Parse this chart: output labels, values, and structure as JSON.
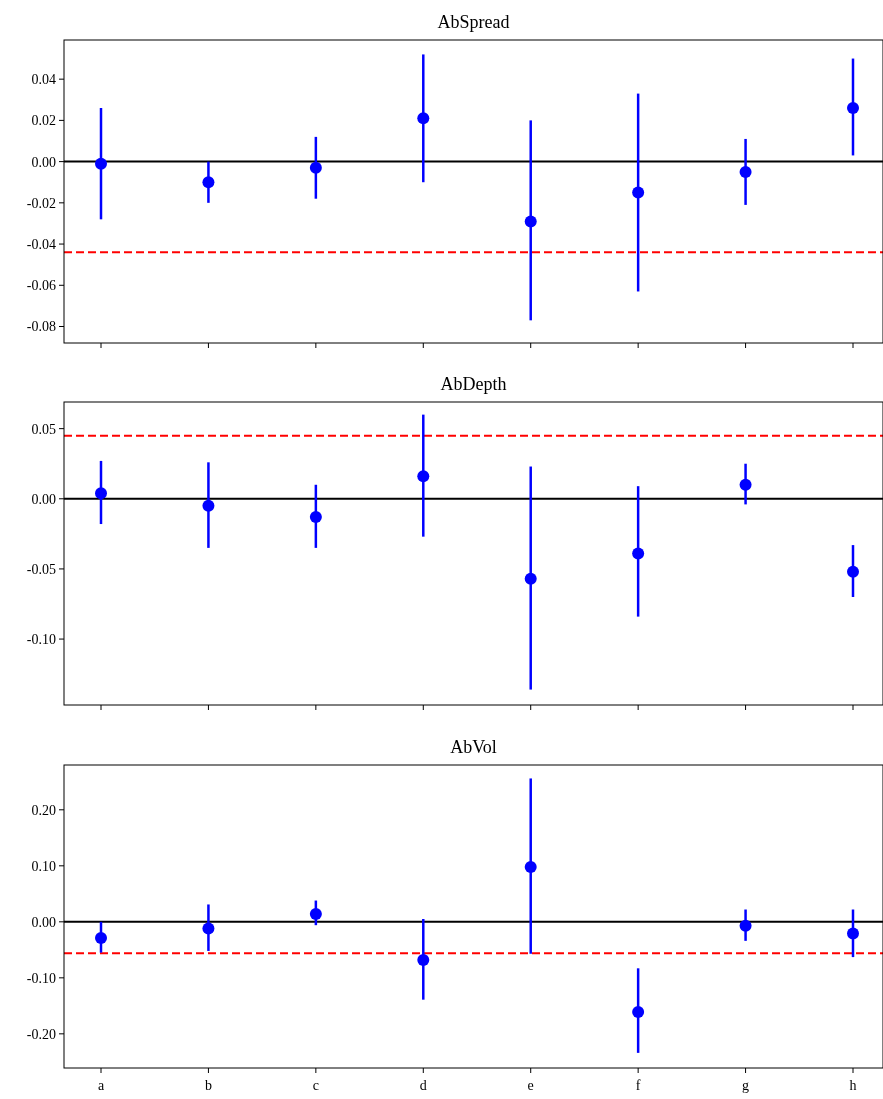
{
  "chart_data": [
    {
      "type": "scatter",
      "title": "AbSpread",
      "categories": [
        null,
        null,
        null,
        null,
        null,
        null,
        null,
        null
      ],
      "tick_labels": "y",
      "marker": "circle",
      "ylim": [
        -0.088,
        0.059
      ],
      "yticks": [
        {
          "value": -0.08,
          "label": "-0.08"
        },
        {
          "value": -0.06,
          "label": "-0.06"
        },
        {
          "value": -0.04,
          "label": "-0.04"
        },
        {
          "value": -0.02,
          "label": "-0.02"
        },
        {
          "value": 0,
          "label": "0.00"
        },
        {
          "value": 0.02,
          "label": "0.02"
        },
        {
          "value": 0.04,
          "label": "0.04"
        }
      ],
      "series": [
        {
          "color": "#0000ff",
          "values": [
            -0.001,
            -0.01,
            -0.003,
            0.021,
            -0.029,
            -0.015,
            -0.005,
            0.026
          ],
          "errors": [
            [
              -0.028,
              0.026
            ],
            [
              -0.02,
              0.0
            ],
            [
              -0.018,
              0.012
            ],
            [
              -0.01,
              0.052
            ],
            [
              -0.077,
              0.02
            ],
            [
              -0.063,
              0.033
            ],
            [
              -0.021,
              0.011
            ],
            [
              0.003,
              0.05
            ]
          ]
        }
      ],
      "ref_lines": [
        {
          "axis": "y",
          "value": 0,
          "color": "#000000",
          "line_style": "solid"
        },
        {
          "axis": "y",
          "value": -0.044,
          "color": "#ff0000",
          "line_style": "dashed"
        }
      ]
    },
    {
      "type": "scatter",
      "title": "AbDepth",
      "categories": [
        null,
        null,
        null,
        null,
        null,
        null,
        null,
        null
      ],
      "tick_labels": "y",
      "marker": "circle",
      "ylim": [
        -0.147,
        0.069
      ],
      "yticks": [
        {
          "value": -0.1,
          "label": "-0.10"
        },
        {
          "value": -0.05,
          "label": "-0.05"
        },
        {
          "value": 0,
          "label": "0.00"
        },
        {
          "value": 0.05,
          "label": "0.05"
        }
      ],
      "series": [
        {
          "color": "#0000ff",
          "values": [
            0.004,
            -0.005,
            -0.013,
            0.016,
            -0.057,
            -0.039,
            0.01,
            -0.052
          ],
          "errors": [
            [
              -0.018,
              0.027
            ],
            [
              -0.035,
              0.026
            ],
            [
              -0.035,
              0.01
            ],
            [
              -0.027,
              0.06
            ],
            [
              -0.136,
              0.023
            ],
            [
              -0.084,
              0.009
            ],
            [
              -0.004,
              0.025
            ],
            [
              -0.07,
              -0.033
            ]
          ]
        }
      ],
      "ref_lines": [
        {
          "axis": "y",
          "value": 0,
          "color": "#000000",
          "line_style": "solid"
        },
        {
          "axis": "y",
          "value": 0.045,
          "color": "#ff0000",
          "line_style": "dashed"
        }
      ]
    },
    {
      "type": "scatter",
      "title": "AbVol",
      "categories": [
        "a",
        "b",
        "c",
        "d",
        "e",
        "f",
        "g",
        "h"
      ],
      "marker": "circle",
      "ylim": [
        -0.261,
        0.28
      ],
      "yticks": [
        {
          "value": -0.2,
          "label": "-0.20"
        },
        {
          "value": -0.1,
          "label": "-0.10"
        },
        {
          "value": 0,
          "label": "0.00"
        },
        {
          "value": 0.1,
          "label": "0.10"
        },
        {
          "value": 0.2,
          "label": "0.20"
        }
      ],
      "series": [
        {
          "color": "#0000ff",
          "values": [
            -0.029,
            -0.012,
            0.014,
            -0.068,
            0.098,
            -0.161,
            -0.007,
            -0.021
          ],
          "errors": [
            [
              -0.055,
              0.0
            ],
            [
              -0.052,
              0.031
            ],
            [
              -0.006,
              0.038
            ],
            [
              -0.139,
              0.005
            ],
            [
              -0.057,
              0.256
            ],
            [
              -0.234,
              -0.083
            ],
            [
              -0.034,
              0.022
            ],
            [
              -0.063,
              0.022
            ]
          ]
        }
      ],
      "ref_lines": [
        {
          "axis": "y",
          "value": 0,
          "color": "#000000",
          "line_style": "solid"
        },
        {
          "axis": "y",
          "value": -0.056,
          "color": "#ff0000",
          "line_style": "dashed"
        }
      ]
    }
  ]
}
